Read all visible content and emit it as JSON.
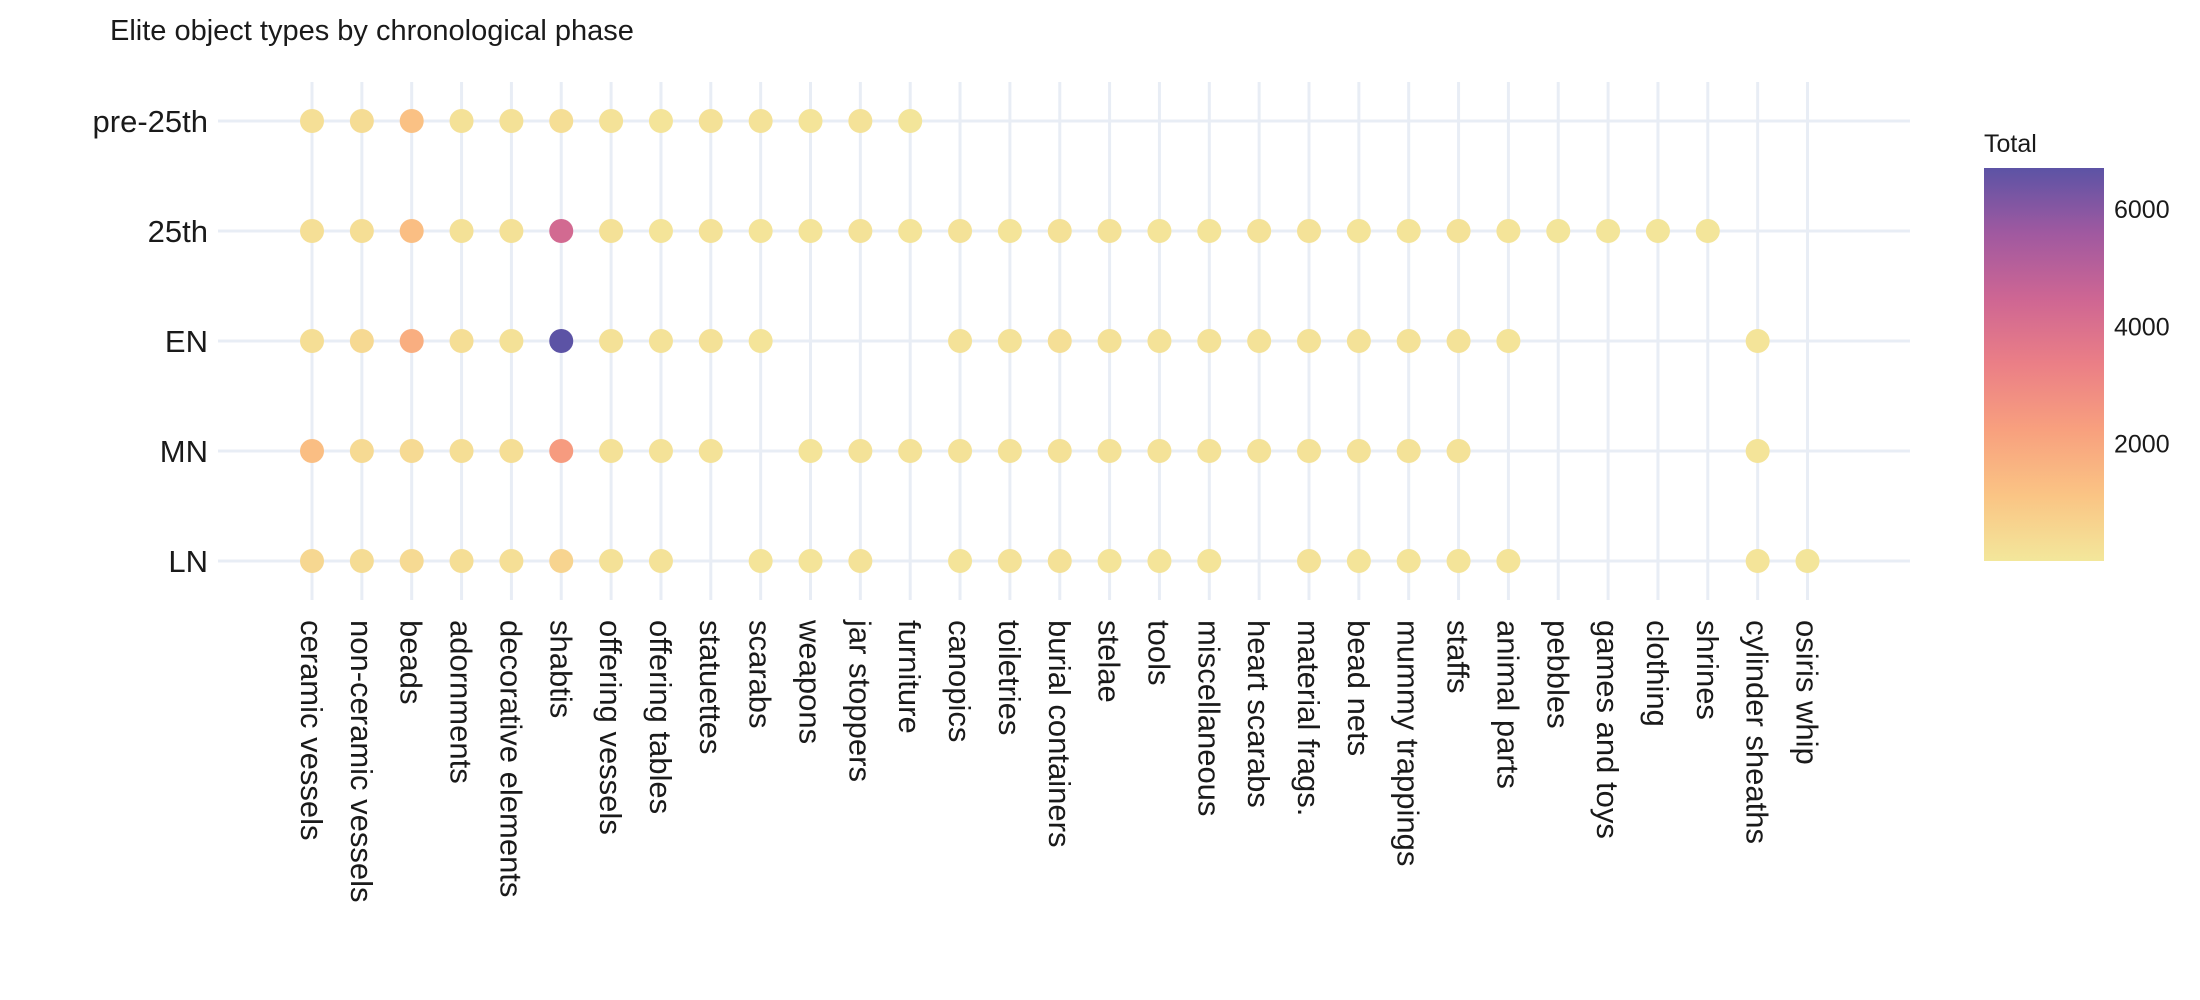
{
  "chart_data": {
    "type": "scatter",
    "title": "Elite object types by chronological phase",
    "xlabel": "",
    "ylabel": "",
    "categories": [
      "ceramic vessels",
      "non-ceramic vessels",
      "beads",
      "adornments",
      "decorative elements",
      "shabtis",
      "offering vessels",
      "offering tables",
      "statuettes",
      "scarabs",
      "weapons",
      "jar stoppers",
      "furniture",
      "canopics",
      "toiletries",
      "burial containers",
      "stelae",
      "tools",
      "miscellaneous",
      "heart scarabs",
      "material frags.",
      "bead nets",
      "mummy trappings",
      "staffs",
      "animal parts",
      "pebbles",
      "games and toys",
      "clothing",
      "shrines",
      "cylinder sheaths",
      "osiris whip"
    ],
    "phases": [
      "pre-25th",
      "25th",
      "EN",
      "MN",
      "LN"
    ],
    "color_scale": {
      "title": "Total",
      "min": 0,
      "max": 6700,
      "ticks": [
        2000,
        4000,
        6000
      ],
      "stops": [
        "#f3e79b",
        "#fac484",
        "#f8a07e",
        "#eb7f86",
        "#ce6693",
        "#a059a0",
        "#5c53a5"
      ]
    },
    "series": [
      {
        "name": "pre-25th",
        "values": [
          250,
          350,
          1200,
          200,
          200,
          300,
          150,
          100,
          200,
          150,
          100,
          150,
          50,
          null,
          null,
          null,
          null,
          null,
          null,
          null,
          null,
          null,
          null,
          null,
          null,
          null,
          null,
          null,
          null,
          null,
          null
        ]
      },
      {
        "name": "25th",
        "values": [
          250,
          300,
          1300,
          200,
          200,
          4300,
          200,
          100,
          150,
          100,
          100,
          150,
          100,
          150,
          100,
          200,
          150,
          100,
          100,
          150,
          150,
          100,
          100,
          150,
          100,
          50,
          50,
          50,
          50,
          null,
          null
        ]
      },
      {
        "name": "EN",
        "values": [
          300,
          450,
          1800,
          300,
          200,
          6700,
          200,
          150,
          200,
          100,
          null,
          null,
          null,
          150,
          150,
          250,
          200,
          150,
          150,
          150,
          150,
          150,
          150,
          150,
          100,
          null,
          null,
          null,
          null,
          80,
          null
        ]
      },
      {
        "name": "MN",
        "values": [
          1300,
          400,
          400,
          300,
          300,
          2400,
          200,
          150,
          150,
          null,
          100,
          150,
          150,
          150,
          150,
          200,
          150,
          150,
          150,
          150,
          150,
          150,
          150,
          150,
          null,
          null,
          null,
          null,
          null,
          80,
          null
        ]
      },
      {
        "name": "LN",
        "values": [
          500,
          350,
          400,
          300,
          250,
          600,
          200,
          150,
          null,
          100,
          100,
          150,
          null,
          100,
          150,
          200,
          100,
          100,
          100,
          null,
          150,
          100,
          100,
          100,
          80,
          null,
          null,
          null,
          null,
          80,
          50
        ]
      }
    ]
  }
}
